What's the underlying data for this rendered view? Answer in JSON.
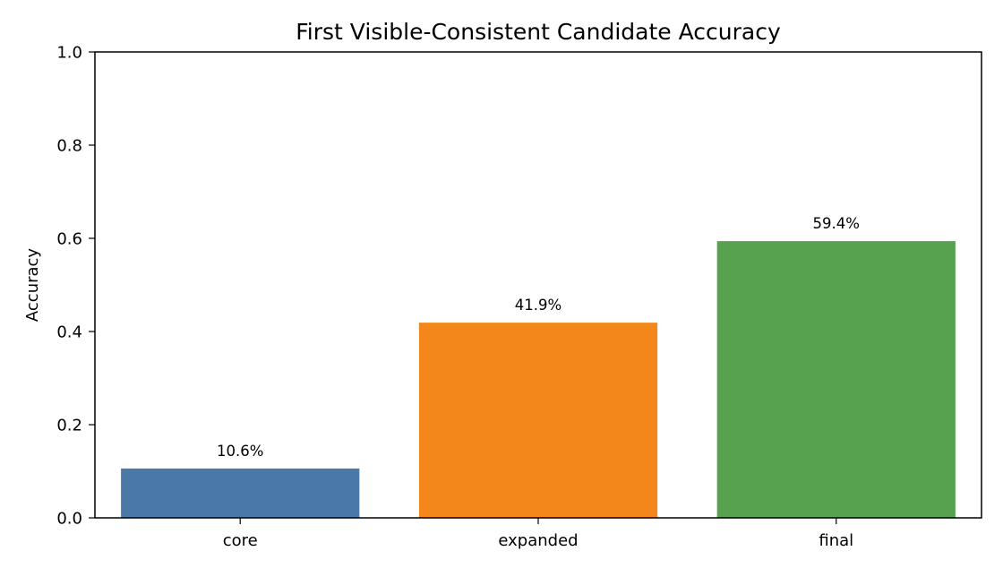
{
  "chart_data": {
    "type": "bar",
    "title": "First Visible-Consistent Candidate Accuracy",
    "xlabel": "",
    "ylabel": "Accuracy",
    "categories": [
      "core",
      "expanded",
      "final"
    ],
    "values": [
      0.106,
      0.419,
      0.594
    ],
    "value_labels": [
      "10.6%",
      "41.9%",
      "59.4%"
    ],
    "colors": [
      "#4a78a7",
      "#f4871c",
      "#56a24e"
    ],
    "ylim": [
      0,
      1.0
    ],
    "yticks": [
      "0.0",
      "0.2",
      "0.4",
      "0.6",
      "0.8",
      "1.0"
    ],
    "grid": false,
    "legend": "none"
  }
}
